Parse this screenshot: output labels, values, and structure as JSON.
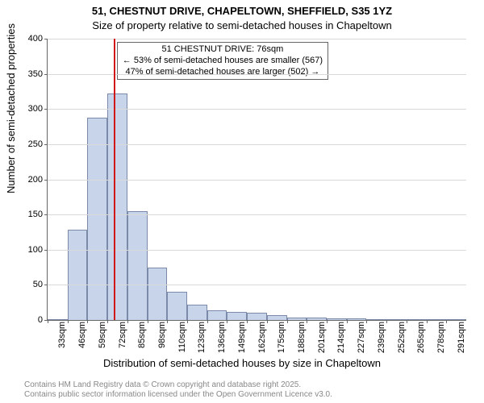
{
  "chart": {
    "type": "histogram",
    "title": "51, CHESTNUT DRIVE, CHAPELTOWN, SHEFFIELD, S35 1YZ",
    "subtitle": "Size of property relative to semi-detached houses in Chapeltown",
    "ylabel": "Number of semi-detached properties",
    "xlabel": "Distribution of semi-detached houses by size in Chapeltown",
    "background_color": "#ffffff",
    "grid_color": "#d9d9d9",
    "axis_color": "#666666",
    "bar_fill": "#c8d4ea",
    "bar_stroke": "#7a8aa8",
    "vline_color": "#d01818",
    "annotation_border": "#666666",
    "title_fontsize": 13,
    "label_fontsize": 13,
    "tick_fontsize": 11,
    "annotation_fontsize": 11,
    "footer_fontsize": 10,
    "footer_color": "#888888",
    "ylim": [
      0,
      400
    ],
    "ytick_step": 50,
    "bar_width_ratio": 1.0,
    "marker_x_value": "76sqm",
    "annotation": {
      "line1": "51 CHESTNUT DRIVE: 76sqm",
      "line2": "← 53% of semi-detached houses are smaller (567)",
      "line3": "47% of semi-detached houses are larger (502) →"
    },
    "categories": [
      "33sqm",
      "46sqm",
      "59sqm",
      "72sqm",
      "85sqm",
      "98sqm",
      "110sqm",
      "123sqm",
      "136sqm",
      "149sqm",
      "162sqm",
      "175sqm",
      "188sqm",
      "201sqm",
      "214sqm",
      "227sqm",
      "239sqm",
      "252sqm",
      "265sqm",
      "278sqm",
      "291sqm"
    ],
    "values": [
      1,
      128,
      288,
      322,
      155,
      75,
      40,
      22,
      14,
      12,
      10,
      7,
      3,
      4,
      2,
      2,
      1,
      1,
      0,
      0,
      1
    ],
    "marker_bin_index": 3,
    "marker_fraction_in_bin": 0.31,
    "footer1": "Contains HM Land Registry data © Crown copyright and database right 2025.",
    "footer2": "Contains public sector information licensed under the Open Government Licence v3.0."
  }
}
